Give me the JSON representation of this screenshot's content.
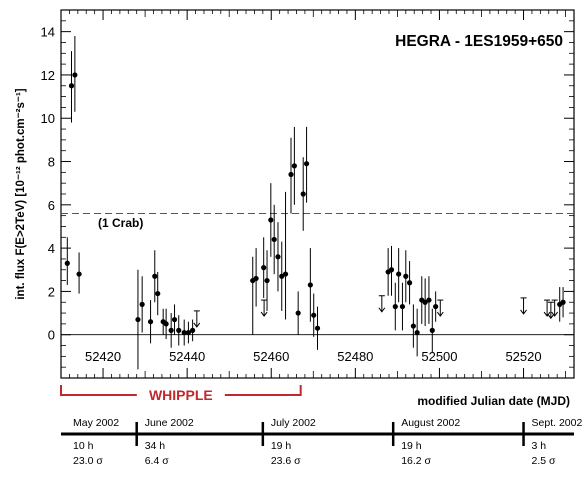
{
  "chart_data": {
    "type": "scatter",
    "title": "HEGRA - 1ES1959+650",
    "xlabel": "modified Julian date (MJD)",
    "ylabel": "int. flux F(E>2TeV) [10⁻¹² phot.cm⁻²s⁻¹]",
    "xlim": [
      52410,
      52532
    ],
    "ylim": [
      -2,
      15
    ],
    "x_ticks": [
      52420,
      52440,
      52460,
      52480,
      52500,
      52520
    ],
    "y_ticks": [
      0,
      2,
      4,
      6,
      8,
      10,
      12,
      14
    ],
    "grid": false,
    "crab_level": 5.6,
    "crab_label": "(1 Crab)",
    "series": [
      {
        "points": [
          {
            "x": 52411.5,
            "y": 3.3,
            "lo": 2.3,
            "hi": 4.5
          },
          {
            "x": 52412.5,
            "y": 11.5,
            "lo": 9.8,
            "hi": 13.1
          },
          {
            "x": 52413.3,
            "y": 12.0,
            "lo": 10.3,
            "hi": 13.8
          },
          {
            "x": 52414.3,
            "y": 2.8,
            "lo": 1.9,
            "hi": 3.8
          },
          {
            "x": 52428.3,
            "y": 0.7,
            "lo": -1.6,
            "hi": 3.0
          },
          {
            "x": 52429.3,
            "y": 1.4,
            "lo": 0.1,
            "hi": 2.7
          },
          {
            "x": 52431.3,
            "y": 0.6,
            "lo": -0.4,
            "hi": 1.6
          },
          {
            "x": 52432.3,
            "y": 2.7,
            "lo": 1.5,
            "hi": 3.9
          },
          {
            "x": 52433.0,
            "y": 1.9,
            "lo": 0.9,
            "hi": 2.9
          },
          {
            "x": 52434.3,
            "y": 0.6,
            "lo": 0.0,
            "hi": 1.2
          },
          {
            "x": 52435.0,
            "y": 0.5,
            "lo": -0.2,
            "hi": 1.2
          },
          {
            "x": 52436.2,
            "y": 0.2,
            "lo": -0.6,
            "hi": 1.0
          },
          {
            "x": 52437.0,
            "y": 0.7,
            "lo": 0.0,
            "hi": 1.4
          },
          {
            "x": 52438.0,
            "y": 0.2,
            "lo": -0.5,
            "hi": 0.9
          },
          {
            "x": 52439.3,
            "y": 0.1,
            "lo": -0.5,
            "hi": 0.7
          },
          {
            "x": 52440.3,
            "y": 0.1,
            "lo": -0.4,
            "hi": 0.6
          },
          {
            "x": 52441.3,
            "y": 0.2,
            "lo": -0.3,
            "hi": 0.7
          },
          {
            "x": 52455.6,
            "y": 2.5,
            "lo": 0.0,
            "hi": 3.6
          },
          {
            "x": 52456.4,
            "y": 2.6,
            "lo": 1.3,
            "hi": 4.0
          },
          {
            "x": 52458.2,
            "y": 3.1,
            "lo": 1.7,
            "hi": 4.5
          },
          {
            "x": 52459.0,
            "y": 2.5,
            "lo": 1.1,
            "hi": 3.9
          },
          {
            "x": 52459.9,
            "y": 5.3,
            "lo": 3.6,
            "hi": 7.0
          },
          {
            "x": 52460.7,
            "y": 4.4,
            "lo": 2.8,
            "hi": 6.0
          },
          {
            "x": 52461.6,
            "y": 3.6,
            "lo": 2.0,
            "hi": 5.2
          },
          {
            "x": 52462.5,
            "y": 2.7,
            "lo": 1.1,
            "hi": 4.3
          },
          {
            "x": 52463.4,
            "y": 2.8,
            "lo": 0.7,
            "hi": 6.6
          },
          {
            "x": 52464.7,
            "y": 7.4,
            "lo": 5.6,
            "hi": 9.1
          },
          {
            "x": 52465.5,
            "y": 7.8,
            "lo": 6.0,
            "hi": 9.6
          },
          {
            "x": 52466.4,
            "y": 1.0,
            "lo": 0.0,
            "hi": 2.0
          },
          {
            "x": 52467.6,
            "y": 6.5,
            "lo": 4.8,
            "hi": 8.2
          },
          {
            "x": 52468.4,
            "y": 7.9,
            "lo": 6.1,
            "hi": 9.6
          },
          {
            "x": 52469.3,
            "y": 2.3,
            "lo": 0.6,
            "hi": 4.0
          },
          {
            "x": 52470.1,
            "y": 0.9,
            "lo": -0.1,
            "hi": 1.9
          },
          {
            "x": 52471.0,
            "y": 0.3,
            "lo": -0.7,
            "hi": 1.3
          },
          {
            "x": 52487.8,
            "y": 2.9,
            "lo": 1.8,
            "hi": 4.0
          },
          {
            "x": 52488.6,
            "y": 3.0,
            "lo": 1.8,
            "hi": 4.1
          },
          {
            "x": 52489.5,
            "y": 1.3,
            "lo": 0.2,
            "hi": 2.4
          },
          {
            "x": 52490.3,
            "y": 2.8,
            "lo": 1.5,
            "hi": 4.0
          },
          {
            "x": 52491.2,
            "y": 1.3,
            "lo": 0.2,
            "hi": 2.4
          },
          {
            "x": 52492.0,
            "y": 2.7,
            "lo": 1.5,
            "hi": 3.9
          },
          {
            "x": 52492.9,
            "y": 2.4,
            "lo": 1.4,
            "hi": 3.4
          },
          {
            "x": 52493.8,
            "y": 0.4,
            "lo": -0.6,
            "hi": 1.4
          },
          {
            "x": 52494.7,
            "y": 0.1,
            "lo": -1.0,
            "hi": 1.2
          },
          {
            "x": 52495.8,
            "y": 1.6,
            "lo": 0.5,
            "hi": 2.7
          },
          {
            "x": 52496.6,
            "y": 1.5,
            "lo": 0.4,
            "hi": 2.6
          },
          {
            "x": 52497.5,
            "y": 1.6,
            "lo": 0.5,
            "hi": 2.7
          },
          {
            "x": 52498.3,
            "y": 0.2,
            "lo": -0.8,
            "hi": 1.2
          },
          {
            "x": 52499.1,
            "y": 1.3,
            "lo": 0.6,
            "hi": 2.0
          },
          {
            "x": 52528.6,
            "y": 1.4,
            "lo": 0.6,
            "hi": 2.2
          },
          {
            "x": 52529.4,
            "y": 1.5,
            "lo": 0.8,
            "hi": 2.2
          }
        ],
        "upper_limits": [
          {
            "x": 52442.3,
            "y": 1.1
          },
          {
            "x": 52458.3,
            "y": 1.6
          },
          {
            "x": 52486.3,
            "y": 1.8
          },
          {
            "x": 52500.2,
            "y": 1.6
          },
          {
            "x": 52520.0,
            "y": 1.7
          },
          {
            "x": 52525.6,
            "y": 1.6
          },
          {
            "x": 52526.5,
            "y": 1.5
          },
          {
            "x": 52527.4,
            "y": 1.6
          }
        ]
      }
    ],
    "whipple": {
      "label": "WHIPPLE",
      "x_start": 52410,
      "x_end": 52467,
      "color": "#c0282d"
    },
    "timeline": {
      "segments": [
        {
          "month": "May 2002",
          "hours": "10 h",
          "sigma": "23.0 σ",
          "x_start": 52410,
          "x_end": 52428
        },
        {
          "month": "June 2002",
          "hours": "34 h",
          "sigma": "6.4 σ",
          "x_start": 52428,
          "x_end": 52458
        },
        {
          "month": "July 2002",
          "hours": "19 h",
          "sigma": "23.6 σ",
          "x_start": 52458,
          "x_end": 52489
        },
        {
          "month": "August 2002",
          "hours": "19 h",
          "sigma": "16.2 σ",
          "x_start": 52489,
          "x_end": 52520
        },
        {
          "month": "Sept. 2002",
          "hours": "3 h",
          "sigma": "2.5 σ",
          "x_start": 52520,
          "x_end": 52532
        }
      ]
    }
  }
}
